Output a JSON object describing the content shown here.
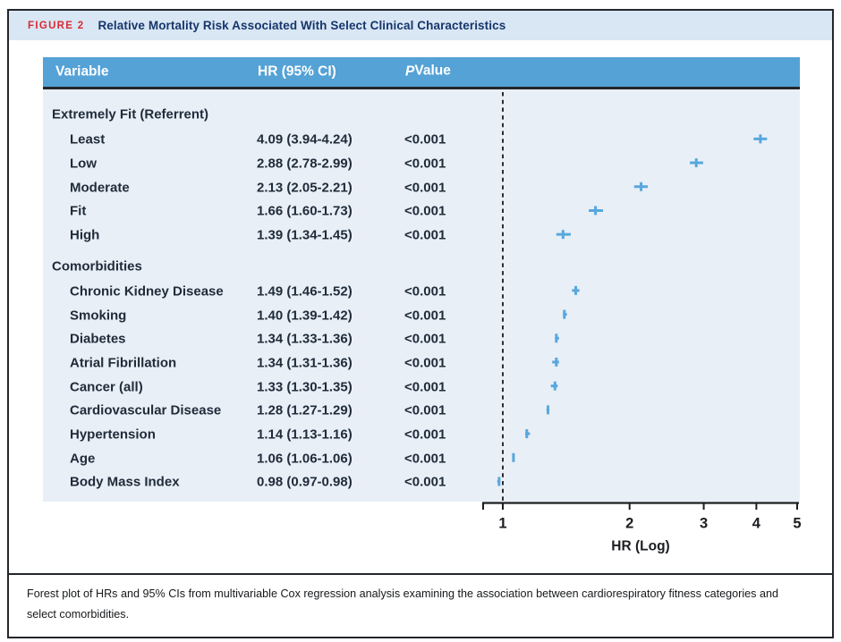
{
  "figure": {
    "label": "FIGURE 2",
    "title": "Relative Mortality Risk Associated With Select Clinical Characteristics"
  },
  "table": {
    "columns": {
      "variable": "Variable",
      "hr": "HR (95% CI)",
      "p_italic": "P",
      "p_rest": " Value"
    }
  },
  "chart_data": {
    "type": "forest",
    "x_scale": "log",
    "xlim": [
      1,
      5
    ],
    "x_ticks": [
      "1",
      "2",
      "3",
      "4",
      "5"
    ],
    "xlabel": "HR (Log)",
    "reference_line": 1,
    "marker_color": "#58a7dd",
    "rows": [
      {
        "type": "section",
        "label": "Extremely Fit (Referrent)"
      },
      {
        "type": "item",
        "label": "Least",
        "hr": 4.09,
        "ci_low": 3.94,
        "ci_high": 4.24,
        "hr_ci": "4.09 (3.94-4.24)",
        "p_value": "<0.001"
      },
      {
        "type": "item",
        "label": "Low",
        "hr": 2.88,
        "ci_low": 2.78,
        "ci_high": 2.99,
        "hr_ci": "2.88 (2.78-2.99)",
        "p_value": "<0.001"
      },
      {
        "type": "item",
        "label": "Moderate",
        "hr": 2.13,
        "ci_low": 2.05,
        "ci_high": 2.21,
        "hr_ci": "2.13 (2.05-2.21)",
        "p_value": "<0.001"
      },
      {
        "type": "item",
        "label": "Fit",
        "hr": 1.66,
        "ci_low": 1.6,
        "ci_high": 1.73,
        "hr_ci": "1.66 (1.60-1.73)",
        "p_value": "<0.001"
      },
      {
        "type": "item",
        "label": "High",
        "hr": 1.39,
        "ci_low": 1.34,
        "ci_high": 1.45,
        "hr_ci": "1.39 (1.34-1.45)",
        "p_value": "<0.001"
      },
      {
        "type": "section",
        "label": "Comorbidities"
      },
      {
        "type": "item",
        "label": "Chronic Kidney Disease",
        "hr": 1.49,
        "ci_low": 1.46,
        "ci_high": 1.52,
        "hr_ci": "1.49 (1.46-1.52)",
        "p_value": "<0.001"
      },
      {
        "type": "item",
        "label": "Smoking",
        "hr": 1.4,
        "ci_low": 1.39,
        "ci_high": 1.42,
        "hr_ci": "1.40 (1.39-1.42)",
        "p_value": "<0.001"
      },
      {
        "type": "item",
        "label": "Diabetes",
        "hr": 1.34,
        "ci_low": 1.33,
        "ci_high": 1.36,
        "hr_ci": "1.34 (1.33-1.36)",
        "p_value": "<0.001"
      },
      {
        "type": "item",
        "label": "Atrial Fibrillation",
        "hr": 1.34,
        "ci_low": 1.31,
        "ci_high": 1.36,
        "hr_ci": "1.34 (1.31-1.36)",
        "p_value": "<0.001"
      },
      {
        "type": "item",
        "label": "Cancer (all)",
        "hr": 1.33,
        "ci_low": 1.3,
        "ci_high": 1.35,
        "hr_ci": "1.33 (1.30-1.35)",
        "p_value": "<0.001"
      },
      {
        "type": "item",
        "label": "Cardiovascular Disease",
        "hr": 1.28,
        "ci_low": 1.27,
        "ci_high": 1.29,
        "hr_ci": "1.28 (1.27-1.29)",
        "p_value": "<0.001"
      },
      {
        "type": "item",
        "label": "Hypertension",
        "hr": 1.14,
        "ci_low": 1.13,
        "ci_high": 1.16,
        "hr_ci": "1.14 (1.13-1.16)",
        "p_value": "<0.001"
      },
      {
        "type": "item",
        "label": "Age",
        "hr": 1.06,
        "ci_low": 1.06,
        "ci_high": 1.06,
        "hr_ci": "1.06 (1.06-1.06)",
        "p_value": "<0.001"
      },
      {
        "type": "item",
        "label": "Body Mass Index",
        "hr": 0.98,
        "ci_low": 0.97,
        "ci_high": 0.98,
        "hr_ci": "0.98 (0.97-0.98)",
        "p_value": "<0.001"
      }
    ]
  },
  "caption": "Forest plot of HRs and 95% CIs from multivariable Cox regression analysis examining the association between cardiorespiratory fitness categories and select comorbidities.",
  "colors": {
    "header_bg": "#54a2d6",
    "panel_bg": "#e9eff7",
    "title_strip_bg": "#d9e6f4",
    "figure_label_red": "#d92b32",
    "title_navy": "#16366b",
    "row_text": "#202c3a",
    "marker_blue": "#58a7dd"
  }
}
